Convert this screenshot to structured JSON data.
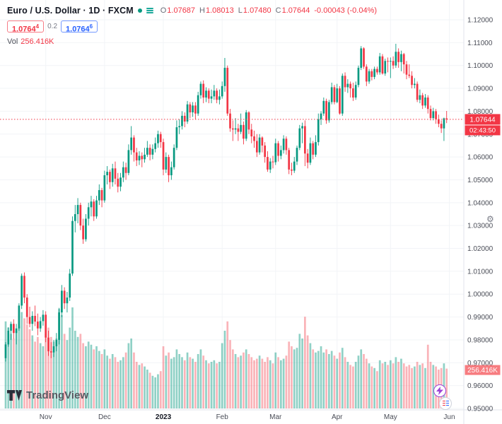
{
  "logo_text": "TradingView",
  "header": {
    "symbol_title": "Euro / U.S. Dollar · 1D · FXCM",
    "ohlc": {
      "o_label": "O",
      "o": "1.07687",
      "h_label": "H",
      "h": "1.08013",
      "l_label": "L",
      "l": "1.07480",
      "c_label": "C",
      "c": "1.07644",
      "change": "-0.00043 (-0.04%)"
    },
    "sell_price": "1.0764",
    "sell_sup": "4",
    "spread": "0.2",
    "buy_price": "1.0764",
    "buy_sup": "6",
    "vol_label": "Vol",
    "vol_value": "256.416K"
  },
  "price_axis": {
    "labels": [
      "1.12000",
      "1.11000",
      "1.10000",
      "1.09000",
      "1.08000",
      "1.07000",
      "1.06000",
      "1.05000",
      "1.04000",
      "1.03000",
      "1.02000",
      "1.01000",
      "1.00000",
      "0.99000",
      "0.98000",
      "0.97000",
      "0.96000",
      "0.95000"
    ],
    "last_price": "1.07644",
    "countdown": "02:43:50",
    "volume_label": "256.416K"
  },
  "colors": {
    "up": "#089981",
    "down": "#f23645",
    "vol_up": "rgba(8,153,129,0.45)",
    "vol_down": "rgba(242,54,69,0.38)",
    "last_label_bg": "#f23645",
    "volume_label_bg": "#f77c80",
    "grid": "#f2f4f7",
    "axis_line": "#e0e3eb",
    "axis_text": "#4a4d57",
    "accent_blue": "#2962ff"
  },
  "chart_data": {
    "type": "candlestick",
    "title": "Euro / U.S. Dollar",
    "symbol": "EURUSD",
    "interval": "1D",
    "exchange": "FXCM",
    "price_range": [
      0.95,
      1.12
    ],
    "last_close": 1.07644,
    "legend_position": "top-left",
    "grid": true,
    "months": [
      {
        "text": "Nov",
        "index": 15
      },
      {
        "text": "Dec",
        "index": 37
      },
      {
        "text": "2023",
        "index": 59,
        "bold": true
      },
      {
        "text": "Feb",
        "index": 81
      },
      {
        "text": "Mar",
        "index": 101
      },
      {
        "text": "Apr",
        "index": 124
      },
      {
        "text": "May",
        "index": 144
      },
      {
        "text": "Jun",
        "index": 166
      }
    ],
    "candles": [
      [
        0.972,
        0.979,
        0.9705,
        0.978
      ],
      [
        0.978,
        0.9855,
        0.977,
        0.984
      ],
      [
        0.984,
        0.988,
        0.98,
        0.987
      ],
      [
        0.987,
        0.989,
        0.9805,
        0.983
      ],
      [
        0.983,
        0.987,
        0.978,
        0.985
      ],
      [
        0.985,
        0.996,
        0.984,
        0.995
      ],
      [
        0.995,
        1.009,
        0.9935,
        1.008
      ],
      [
        1.008,
        1.0095,
        0.996,
        0.9985
      ],
      [
        0.9985,
        1.0,
        0.987,
        0.99
      ],
      [
        0.99,
        0.9945,
        0.9855,
        0.987
      ],
      [
        0.987,
        0.9925,
        0.984,
        0.9905
      ],
      [
        0.9905,
        0.995,
        0.986,
        0.988
      ],
      [
        0.988,
        0.9915,
        0.982,
        0.985
      ],
      [
        0.985,
        0.99,
        0.9835,
        0.9882
      ],
      [
        0.9882,
        0.993,
        0.9862,
        0.991
      ],
      [
        0.991,
        0.9925,
        0.979,
        0.981
      ],
      [
        0.981,
        0.984,
        0.973,
        0.975
      ],
      [
        0.975,
        0.979,
        0.972,
        0.9745
      ],
      [
        0.9745,
        0.98,
        0.9725,
        0.9772
      ],
      [
        0.9772,
        0.983,
        0.975,
        0.98
      ],
      [
        0.98,
        0.994,
        0.978,
        0.992
      ],
      [
        0.992,
        1.004,
        0.99,
        1.0015
      ],
      [
        1.0015,
        1.003,
        0.9935,
        0.996
      ],
      [
        0.996,
        1.001,
        0.992,
        0.9985
      ],
      [
        0.9985,
        1.011,
        0.997,
        1.009
      ],
      [
        1.009,
        1.034,
        1.008,
        1.032
      ],
      [
        1.032,
        1.039,
        1.027,
        1.035
      ],
      [
        1.035,
        1.042,
        1.031,
        1.039
      ],
      [
        1.039,
        1.04,
        1.028,
        1.03
      ],
      [
        1.03,
        1.033,
        1.022,
        1.024
      ],
      [
        1.024,
        1.035,
        1.023,
        1.033
      ],
      [
        1.033,
        1.04,
        1.03,
        1.038
      ],
      [
        1.038,
        1.043,
        1.034,
        1.0405
      ],
      [
        1.0405,
        1.0415,
        1.032,
        1.034
      ],
      [
        1.034,
        1.043,
        1.033,
        1.041
      ],
      [
        1.041,
        1.048,
        1.039,
        1.0455
      ],
      [
        1.0455,
        1.0465,
        1.038,
        1.041
      ],
      [
        1.041,
        1.054,
        1.04,
        1.052
      ],
      [
        1.052,
        1.056,
        1.048,
        1.0535
      ],
      [
        1.0535,
        1.0545,
        1.046,
        1.049
      ],
      [
        1.049,
        1.057,
        1.047,
        1.055
      ],
      [
        1.055,
        1.058,
        1.048,
        1.0505
      ],
      [
        1.0505,
        1.053,
        1.0445,
        1.047
      ],
      [
        1.047,
        1.053,
        1.045,
        1.051
      ],
      [
        1.051,
        1.058,
        1.049,
        1.0555
      ],
      [
        1.0555,
        1.0575,
        1.05,
        1.053
      ],
      [
        1.053,
        1.0655,
        1.052,
        1.063
      ],
      [
        1.063,
        1.0735,
        1.061,
        1.0685
      ],
      [
        1.0685,
        1.0695,
        1.058,
        1.062
      ],
      [
        1.062,
        1.064,
        1.056,
        1.0585
      ],
      [
        1.0585,
        1.0625,
        1.0565,
        1.0605
      ],
      [
        1.0605,
        1.062,
        1.0555,
        1.059
      ],
      [
        1.059,
        1.064,
        1.0575,
        1.061
      ],
      [
        1.061,
        1.067,
        1.06,
        1.064
      ],
      [
        1.064,
        1.0655,
        1.0585,
        1.061
      ],
      [
        1.061,
        1.0655,
        1.059,
        1.0635
      ],
      [
        1.0635,
        1.0685,
        1.062,
        1.066
      ],
      [
        1.066,
        1.0715,
        1.064,
        1.07
      ],
      [
        1.07,
        1.071,
        1.064,
        1.0665
      ],
      [
        1.0665,
        1.068,
        1.052,
        1.0545
      ],
      [
        1.0545,
        1.062,
        1.053,
        1.06
      ],
      [
        1.06,
        1.061,
        1.049,
        1.052
      ],
      [
        1.052,
        1.058,
        1.05,
        1.0555
      ],
      [
        1.0555,
        1.0655,
        1.0545,
        1.064
      ],
      [
        1.064,
        1.076,
        1.063,
        1.073
      ],
      [
        1.073,
        1.0765,
        1.07,
        1.0735
      ],
      [
        1.0735,
        1.08,
        1.072,
        1.078
      ],
      [
        1.078,
        1.0795,
        1.073,
        1.0755
      ],
      [
        1.0755,
        1.0845,
        1.0745,
        1.083
      ],
      [
        1.083,
        1.084,
        1.077,
        1.0795
      ],
      [
        1.0795,
        1.084,
        1.0775,
        1.0825
      ],
      [
        1.0825,
        1.084,
        1.0765,
        1.079
      ],
      [
        1.079,
        1.0885,
        1.078,
        1.087
      ],
      [
        1.087,
        1.093,
        1.0855,
        1.092
      ],
      [
        1.092,
        1.0935,
        1.0835,
        1.086
      ],
      [
        1.086,
        1.0905,
        1.084,
        1.089
      ],
      [
        1.089,
        1.09,
        1.0835,
        1.0855
      ],
      [
        1.0855,
        1.0895,
        1.0835,
        1.0865
      ],
      [
        1.0865,
        1.0915,
        1.085,
        1.089
      ],
      [
        1.089,
        1.09,
        1.0835,
        1.085
      ],
      [
        1.085,
        1.0895,
        1.083,
        1.0865
      ],
      [
        1.0865,
        1.093,
        1.0855,
        1.091
      ],
      [
        1.091,
        1.1033,
        1.0885,
        1.099
      ],
      [
        1.099,
        1.1,
        1.078,
        1.079
      ],
      [
        1.079,
        1.081,
        1.071,
        1.0725
      ],
      [
        1.0725,
        1.076,
        1.067,
        1.072
      ],
      [
        1.072,
        1.077,
        1.07,
        1.0725
      ],
      [
        1.0725,
        1.0745,
        1.067,
        1.071
      ],
      [
        1.071,
        1.079,
        1.07,
        1.074
      ],
      [
        1.074,
        1.0755,
        1.0655,
        1.068
      ],
      [
        1.068,
        1.0805,
        1.067,
        1.0795
      ],
      [
        1.0795,
        1.08,
        1.07,
        1.072
      ],
      [
        1.072,
        1.0745,
        1.066,
        1.069
      ],
      [
        1.069,
        1.0715,
        1.064,
        1.067
      ],
      [
        1.067,
        1.07,
        1.06,
        1.062
      ],
      [
        1.062,
        1.07,
        1.061,
        1.0685
      ],
      [
        1.0685,
        1.069,
        1.062,
        1.065
      ],
      [
        1.065,
        1.0665,
        1.0575,
        1.06
      ],
      [
        1.06,
        1.0625,
        1.0535,
        1.0545
      ],
      [
        1.0545,
        1.0595,
        1.053,
        1.058
      ],
      [
        1.058,
        1.0605,
        1.055,
        1.0577
      ],
      [
        1.0577,
        1.068,
        1.0565,
        1.066
      ],
      [
        1.066,
        1.067,
        1.058,
        1.0605
      ],
      [
        1.0605,
        1.065,
        1.059,
        1.063
      ],
      [
        1.063,
        1.0695,
        1.0615,
        1.068
      ],
      [
        1.068,
        1.069,
        1.061,
        1.063
      ],
      [
        1.063,
        1.064,
        1.0525,
        1.0545
      ],
      [
        1.0545,
        1.0575,
        1.052,
        1.054
      ],
      [
        1.054,
        1.06,
        1.053,
        1.058
      ],
      [
        1.058,
        1.065,
        1.0565,
        1.064
      ],
      [
        1.064,
        1.074,
        1.063,
        1.0725
      ],
      [
        1.0725,
        1.075,
        1.066,
        1.0735
      ],
      [
        1.0735,
        1.076,
        1.056,
        1.0615
      ],
      [
        1.0615,
        1.0635,
        1.055,
        1.0575
      ],
      [
        1.0575,
        1.0685,
        1.0565,
        1.066
      ],
      [
        1.066,
        1.067,
        1.059,
        1.061
      ],
      [
        1.061,
        1.0695,
        1.06,
        1.0665
      ],
      [
        1.0665,
        1.079,
        1.065,
        1.0765
      ],
      [
        1.0765,
        1.08,
        1.074,
        1.079
      ],
      [
        1.079,
        1.086,
        1.078,
        1.0845
      ],
      [
        1.0845,
        1.0855,
        1.0745,
        1.076
      ],
      [
        1.076,
        1.085,
        1.075,
        1.084
      ],
      [
        1.084,
        1.0925,
        1.083,
        1.0905
      ],
      [
        1.0905,
        1.0915,
        1.083,
        1.084
      ],
      [
        1.084,
        1.092,
        1.0835,
        1.09
      ],
      [
        1.09,
        1.091,
        1.0785,
        1.079
      ],
      [
        1.079,
        1.0965,
        1.078,
        1.0955
      ],
      [
        1.0955,
        1.097,
        1.0885,
        1.0905
      ],
      [
        1.0905,
        1.094,
        1.088,
        1.092
      ],
      [
        1.092,
        1.093,
        1.086,
        1.09
      ],
      [
        1.09,
        1.0925,
        1.0845,
        1.086
      ],
      [
        1.086,
        1.093,
        1.085,
        1.0915
      ],
      [
        1.0915,
        1.1,
        1.0905,
        1.099
      ],
      [
        1.099,
        1.1085,
        1.098,
        1.1075
      ],
      [
        1.1075,
        1.108,
        1.0985,
        1.0995
      ],
      [
        1.0995,
        1.1005,
        1.091,
        1.093
      ],
      [
        1.093,
        1.0985,
        1.092,
        1.0975
      ],
      [
        1.0975,
        1.0985,
        1.0935,
        1.095
      ],
      [
        1.095,
        1.0995,
        1.094,
        1.0985
      ],
      [
        1.0985,
        1.0995,
        1.096,
        1.097
      ],
      [
        1.097,
        1.1055,
        1.096,
        1.104
      ],
      [
        1.104,
        1.105,
        1.096,
        1.0965
      ],
      [
        1.0965,
        1.103,
        1.0955,
        1.102
      ],
      [
        1.102,
        1.1035,
        1.097,
        1.1018
      ],
      [
        1.1018,
        1.1035,
        1.0945,
        1.102
      ],
      [
        1.102,
        1.104,
        1.0985,
        1.1
      ],
      [
        1.1,
        1.1095,
        1.099,
        1.106
      ],
      [
        1.106,
        1.1075,
        1.099,
        1.1015
      ],
      [
        1.1015,
        1.1065,
        1.0975,
        1.105
      ],
      [
        1.105,
        1.1055,
        1.0965,
        1.1005
      ],
      [
        1.1005,
        1.102,
        1.094,
        1.096
      ],
      [
        1.096,
        1.1005,
        1.0945,
        1.0955
      ],
      [
        1.0955,
        1.0975,
        1.09,
        1.0915
      ],
      [
        1.0915,
        1.0945,
        1.09,
        1.092
      ],
      [
        1.092,
        1.093,
        1.084,
        1.085
      ],
      [
        1.085,
        1.0895,
        1.0835,
        1.087
      ],
      [
        1.087,
        1.088,
        1.081,
        1.0825
      ],
      [
        1.0825,
        1.0875,
        1.0815,
        1.086
      ],
      [
        1.086,
        1.087,
        1.079,
        1.081
      ],
      [
        1.081,
        1.0825,
        1.076,
        1.077
      ],
      [
        1.077,
        1.0815,
        1.076,
        1.08
      ],
      [
        1.08,
        1.081,
        1.0745,
        1.0765
      ],
      [
        1.0765,
        1.0785,
        1.073,
        1.0745
      ],
      [
        1.0745,
        1.076,
        1.0705,
        1.0725
      ],
      [
        1.0725,
        1.0772,
        1.067,
        1.0769
      ],
      [
        1.07687,
        1.08013,
        1.0748,
        1.07644
      ]
    ],
    "volumes_k": [
      560,
      520,
      480,
      450,
      500,
      530,
      620,
      580,
      540,
      510,
      470,
      430,
      460,
      420,
      400,
      480,
      520,
      460,
      430,
      450,
      640,
      600,
      480,
      440,
      520,
      650,
      500,
      460,
      480,
      420,
      400,
      430,
      410,
      380,
      400,
      370,
      350,
      380,
      340,
      320,
      350,
      330,
      300,
      310,
      330,
      360,
      420,
      450,
      360,
      300,
      280,
      290,
      270,
      250,
      230,
      210,
      200,
      220,
      240,
      400,
      340,
      360,
      320,
      330,
      380,
      350,
      330,
      310,
      360,
      330,
      320,
      300,
      350,
      380,
      340,
      310,
      290,
      300,
      310,
      290,
      300,
      420,
      500,
      560,
      440,
      380,
      350,
      330,
      340,
      360,
      380,
      350,
      330,
      310,
      320,
      340,
      320,
      300,
      330,
      310,
      290,
      360,
      330,
      310,
      320,
      340,
      430,
      400,
      380,
      390,
      480,
      450,
      590,
      470,
      420,
      380,
      360,
      370,
      400,
      360,
      380,
      350,
      370,
      340,
      320,
      360,
      390,
      330,
      300,
      280,
      270,
      300,
      340,
      380,
      350,
      320,
      290,
      270,
      260,
      240,
      310,
      290,
      300,
      280,
      310,
      290,
      330,
      300,
      320,
      290,
      270,
      280,
      260,
      270,
      300,
      280,
      290,
      260,
      410,
      300,
      280,
      270,
      250,
      260,
      290,
      256.416
    ]
  }
}
